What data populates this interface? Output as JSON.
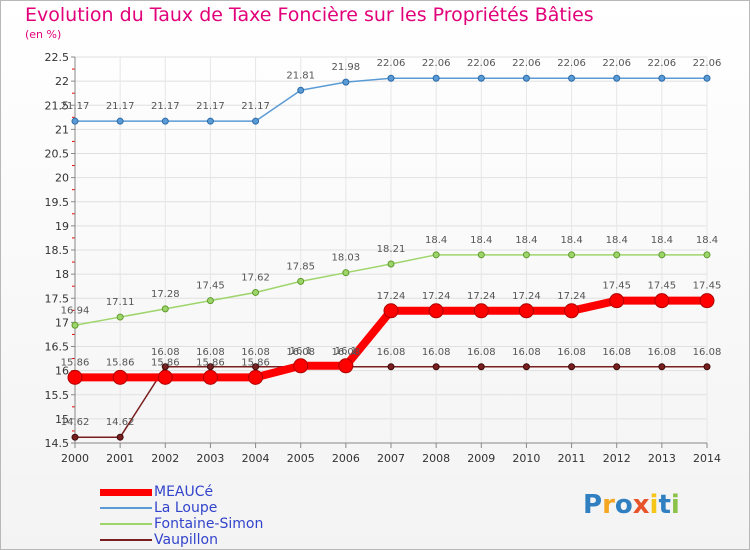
{
  "chart_data": {
    "type": "line",
    "title": "Evolution du Taux de Taxe Foncière sur les Propriétés Bâties",
    "ylabel": "(en %)",
    "x": [
      "2000",
      "2001",
      "2002",
      "2003",
      "2004",
      "2005",
      "2006",
      "2007",
      "2008",
      "2009",
      "2010",
      "2011",
      "2012",
      "2013",
      "2014"
    ],
    "ylim": [
      14.5,
      22.5
    ],
    "yticks": [
      "14.5",
      "15",
      "15.5",
      "16",
      "16.5",
      "17",
      "17.5",
      "18",
      "18.5",
      "19",
      "19.5",
      "20",
      "20.5",
      "21",
      "21.5",
      "22",
      "22.5"
    ],
    "series": [
      {
        "name": "La Loupe",
        "color": "#5b9bd5",
        "values": [
          21.17,
          21.17,
          21.17,
          21.17,
          21.17,
          21.81,
          21.98,
          22.06,
          22.06,
          22.06,
          22.06,
          22.06,
          22.06,
          22.06,
          22.06
        ],
        "labels": [
          "21.17",
          "21.17",
          "21.17",
          "21.17",
          "21.17",
          "21.81",
          "21.98",
          "22.06",
          "22.06",
          "22.06",
          "22.06",
          "22.06",
          "22.06",
          "22.06",
          "22.06"
        ]
      },
      {
        "name": "Fontaine-Simon",
        "color": "#9ed56b",
        "values": [
          16.94,
          17.11,
          17.28,
          17.45,
          17.62,
          17.85,
          18.03,
          18.21,
          18.4,
          18.4,
          18.4,
          18.4,
          18.4,
          18.4,
          18.4
        ],
        "labels": [
          "16.94",
          "17.11",
          "17.28",
          "17.45",
          "17.62",
          "17.85",
          "18.03",
          "18.21",
          "18.4",
          "18.4",
          "18.4",
          "18.4",
          "18.4",
          "18.4",
          "18.4"
        ]
      },
      {
        "name": "Vaupillon",
        "color": "#7a1f1f",
        "values": [
          14.62,
          14.62,
          16.08,
          16.08,
          16.08,
          16.08,
          16.08,
          16.08,
          16.08,
          16.08,
          16.08,
          16.08,
          16.08,
          16.08,
          16.08
        ],
        "labels": [
          "14.62",
          "14.62",
          "16.08",
          "16.08",
          "16.08",
          "16.08",
          "16.08",
          "16.08",
          "16.08",
          "16.08",
          "16.08",
          "16.08",
          "16.08",
          "16.08",
          "16.08"
        ]
      },
      {
        "name": "MEAUCé",
        "color": "#ff0000",
        "values": [
          15.86,
          15.86,
          15.86,
          15.86,
          15.86,
          16.1,
          16.1,
          17.24,
          17.24,
          17.24,
          17.24,
          17.24,
          17.45,
          17.45,
          17.45
        ],
        "labels": [
          "15.86",
          "15.86",
          "15.86",
          "15.86",
          "15.86",
          "16.1",
          "16.1",
          "17.24",
          "17.24",
          "17.24",
          "17.24",
          "17.24",
          "17.45",
          "17.45",
          "17.45"
        ]
      }
    ],
    "legend": [
      "MEAUCé",
      "La Loupe",
      "Fontaine-Simon",
      "Vaupillon"
    ]
  },
  "brand": {
    "letters": [
      "P",
      "r",
      "o",
      "x",
      "i",
      "t",
      "i"
    ],
    "colors": [
      "#2f7fc1",
      "#f5a623",
      "#2f7fc1",
      "#e8542a",
      "#f5c518",
      "#2f7fc1",
      "#8bc34a"
    ]
  }
}
